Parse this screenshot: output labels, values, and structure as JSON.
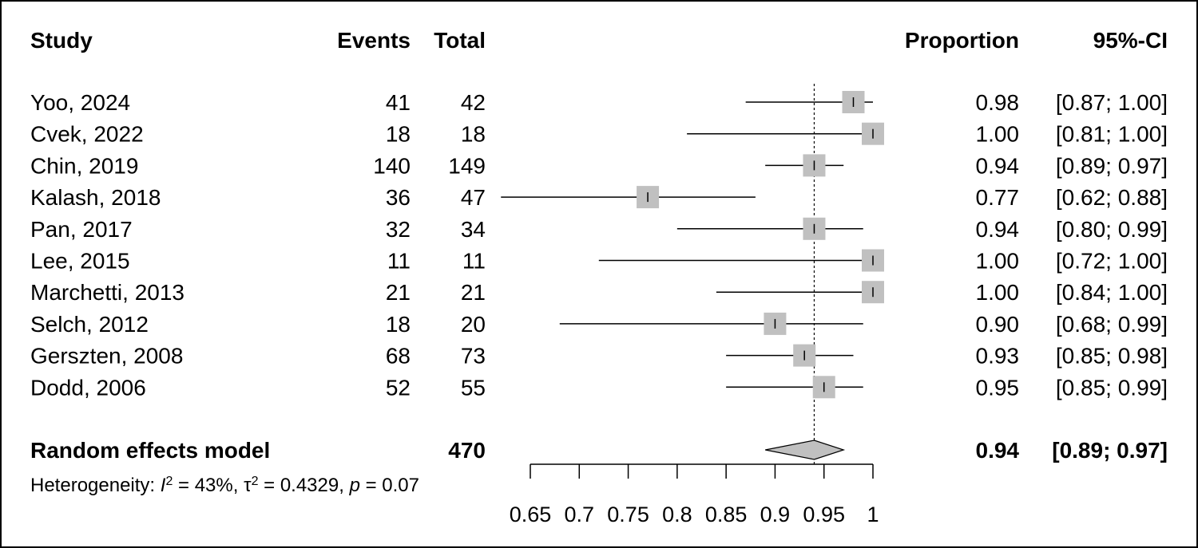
{
  "chart_data": {
    "type": "forest",
    "headers": {
      "study": "Study",
      "events": "Events",
      "total": "Total",
      "proportion": "Proportion",
      "ci": "95%-CI"
    },
    "studies": [
      {
        "study": "Yoo, 2024",
        "events": "41",
        "total": "42",
        "proportion": 0.98,
        "lower": 0.87,
        "upper": 1.0,
        "prop_text": "0.98",
        "ci_text": "[0.87; 1.00]",
        "weight": 1.0
      },
      {
        "study": "Cvek, 2022",
        "events": "18",
        "total": "18",
        "proportion": 1.0,
        "lower": 0.81,
        "upper": 1.0,
        "prop_text": "1.00",
        "ci_text": "[0.81; 1.00]",
        "weight": 1.0
      },
      {
        "study": "Chin, 2019",
        "events": "140",
        "total": "149",
        "proportion": 0.94,
        "lower": 0.89,
        "upper": 0.97,
        "prop_text": "0.94",
        "ci_text": "[0.89; 0.97]",
        "weight": 1.0
      },
      {
        "study": "Kalash, 2018",
        "events": "36",
        "total": "47",
        "proportion": 0.77,
        "lower": 0.62,
        "upper": 0.88,
        "prop_text": "0.77",
        "ci_text": "[0.62; 0.88]",
        "weight": 1.0
      },
      {
        "study": "Pan, 2017",
        "events": "32",
        "total": "34",
        "proportion": 0.94,
        "lower": 0.8,
        "upper": 0.99,
        "prop_text": "0.94",
        "ci_text": "[0.80; 0.99]",
        "weight": 1.0
      },
      {
        "study": "Lee, 2015",
        "events": "11",
        "total": "11",
        "proportion": 1.0,
        "lower": 0.72,
        "upper": 1.0,
        "prop_text": "1.00",
        "ci_text": "[0.72; 1.00]",
        "weight": 1.0
      },
      {
        "study": "Marchetti, 2013",
        "events": "21",
        "total": "21",
        "proportion": 1.0,
        "lower": 0.84,
        "upper": 1.0,
        "prop_text": "1.00",
        "ci_text": "[0.84; 1.00]",
        "weight": 1.0
      },
      {
        "study": "Selch, 2012",
        "events": "18",
        "total": "20",
        "proportion": 0.9,
        "lower": 0.68,
        "upper": 0.99,
        "prop_text": "0.90",
        "ci_text": "[0.68; 0.99]",
        "weight": 1.0
      },
      {
        "study": "Gerszten, 2008",
        "events": "68",
        "total": "73",
        "proportion": 0.93,
        "lower": 0.85,
        "upper": 0.98,
        "prop_text": "0.93",
        "ci_text": "[0.85; 0.98]",
        "weight": 1.0
      },
      {
        "study": "Dodd, 2006",
        "events": "52",
        "total": "55",
        "proportion": 0.95,
        "lower": 0.85,
        "upper": 0.99,
        "prop_text": "0.95",
        "ci_text": "[0.85; 0.99]",
        "weight": 1.0
      }
    ],
    "pooled": {
      "label": "Random effects model",
      "total": "470",
      "proportion": 0.94,
      "lower": 0.89,
      "upper": 0.97,
      "prop_text": "0.94",
      "ci_text": "[0.89; 0.97]"
    },
    "heterogeneity": {
      "prefix": "Heterogeneity: ",
      "i_symbol": "I",
      "i_value": " = 43%, ",
      "tau_symbol": "τ",
      "tau_value": " = 0.4329, ",
      "p_symbol": "p",
      "p_value": " = 0.07",
      "squared": "2"
    },
    "x_axis": {
      "range": [
        0.65,
        1.0
      ],
      "ticks": [
        0.65,
        0.7,
        0.75,
        0.8,
        0.85,
        0.9,
        0.95,
        1.0
      ],
      "tick_labels": [
        "0.65",
        "0.7",
        "0.75",
        "0.8",
        "0.85",
        "0.9",
        "0.95",
        "1"
      ],
      "reference_line": 0.94
    },
    "colors": {
      "box": "#c0c0c0",
      "diamond": "#c0c0c0",
      "line": "#000000"
    }
  }
}
